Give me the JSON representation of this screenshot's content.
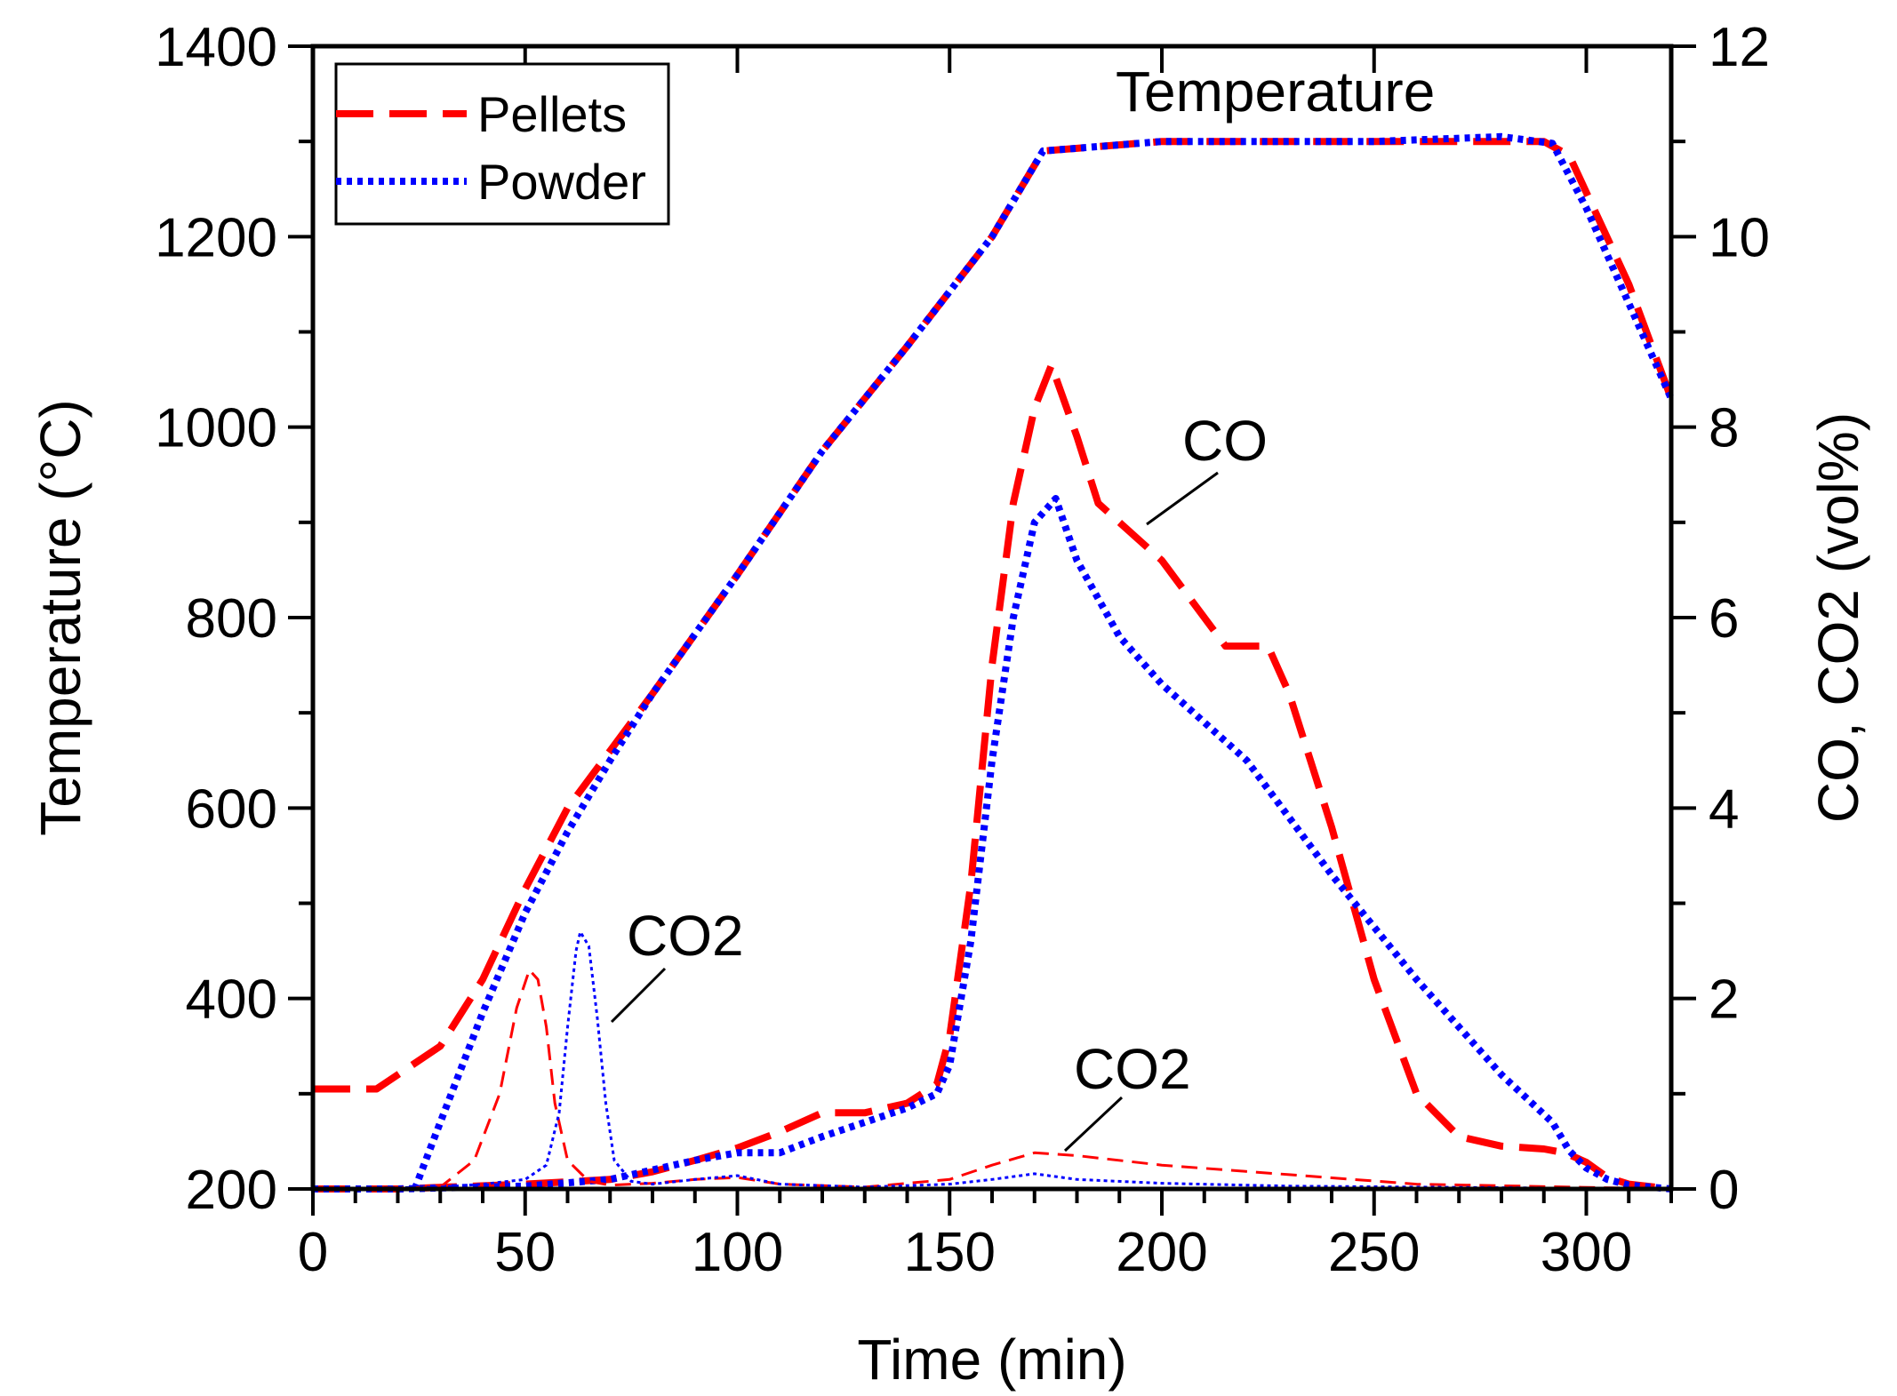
{
  "chart_data": {
    "type": "line",
    "xlabel": "Time (min)",
    "ylabel_left": "Temperature (°C)",
    "ylabel_right": "CO, CO2 (vol%)",
    "xlim": [
      0,
      320
    ],
    "ylim_left": [
      200,
      1400
    ],
    "ylim_right": [
      0,
      12
    ],
    "x_ticks": [
      0,
      50,
      100,
      150,
      200,
      250,
      300
    ],
    "y_left_ticks": [
      200,
      400,
      600,
      800,
      1000,
      1200,
      1400
    ],
    "y_right_ticks": [
      0,
      2,
      4,
      6,
      8,
      10,
      12
    ],
    "legend": {
      "position": "top-left",
      "entries": [
        {
          "label": "Pellets",
          "color": "#ff0000",
          "style": "dashed"
        },
        {
          "label": "Powder",
          "color": "#0000ff",
          "style": "dotted"
        }
      ]
    },
    "annotations": [
      {
        "text": "Temperature",
        "x": 235,
        "y_left": 1310
      },
      {
        "text": "CO",
        "x": 218,
        "y_left": 980
      },
      {
        "text": "CO2",
        "x": 85,
        "y_left": 450
      },
      {
        "text": "CO2",
        "x": 195,
        "y_left": 285
      }
    ],
    "series": [
      {
        "name": "Pellets",
        "kind": "temperature",
        "axis": "left",
        "color": "#ff0000",
        "style": "dashed",
        "x": [
          0,
          15,
          30,
          40,
          50,
          60,
          70,
          80,
          100,
          120,
          140,
          160,
          172,
          200,
          250,
          290,
          296,
          310,
          320
        ],
        "y": [
          305,
          305,
          350,
          420,
          515,
          600,
          660,
          720,
          845,
          975,
          1085,
          1200,
          1290,
          1300,
          1300,
          1300,
          1285,
          1150,
          1030
        ]
      },
      {
        "name": "Powder",
        "kind": "temperature",
        "axis": "left",
        "color": "#0000ff",
        "style": "dotted",
        "x": [
          24,
          30,
          40,
          50,
          60,
          70,
          80,
          100,
          120,
          140,
          160,
          172,
          200,
          250,
          280,
          292,
          300,
          310,
          320
        ],
        "y": [
          200,
          270,
          385,
          490,
          575,
          650,
          720,
          845,
          975,
          1085,
          1200,
          1290,
          1300,
          1300,
          1305,
          1298,
          1230,
          1130,
          1030
        ]
      },
      {
        "name": "Pellets",
        "kind": "CO",
        "axis": "right",
        "color": "#ff0000",
        "style": "dashed",
        "x": [
          0,
          20,
          50,
          70,
          80,
          90,
          100,
          110,
          120,
          130,
          140,
          147,
          150,
          155,
          160,
          165,
          170,
          174,
          180,
          185,
          200,
          215,
          220,
          225,
          230,
          240,
          250,
          260,
          270,
          280,
          290,
          295,
          300,
          305,
          310,
          320
        ],
        "y": [
          0,
          0,
          0.05,
          0.1,
          0.18,
          0.3,
          0.43,
          0.6,
          0.8,
          0.8,
          0.9,
          1.1,
          1.6,
          3.2,
          5.5,
          7.2,
          8.2,
          8.65,
          7.9,
          7.2,
          6.6,
          5.7,
          5.7,
          5.7,
          5.2,
          3.8,
          2.2,
          1.0,
          0.55,
          0.45,
          0.42,
          0.38,
          0.28,
          0.12,
          0.05,
          0
        ]
      },
      {
        "name": "Powder",
        "kind": "CO",
        "axis": "right",
        "color": "#0000ff",
        "style": "dotted",
        "x": [
          0,
          20,
          50,
          70,
          80,
          90,
          100,
          110,
          120,
          130,
          140,
          147,
          150,
          155,
          160,
          165,
          170,
          175,
          180,
          190,
          200,
          220,
          240,
          260,
          280,
          292,
          296,
          300,
          305,
          310,
          320
        ],
        "y": [
          0,
          0,
          0.03,
          0.1,
          0.2,
          0.3,
          0.38,
          0.38,
          0.55,
          0.7,
          0.85,
          1.0,
          1.3,
          2.6,
          4.5,
          6.0,
          7.0,
          7.25,
          6.6,
          5.8,
          5.3,
          4.5,
          3.3,
          2.2,
          1.2,
          0.7,
          0.4,
          0.22,
          0.1,
          0.04,
          0
        ]
      },
      {
        "name": "Pellets",
        "kind": "CO2",
        "axis": "right",
        "color": "#ff0000",
        "style": "dashed-thin",
        "x": [
          0,
          30,
          38,
          44,
          48,
          51,
          53,
          55,
          57,
          60,
          65,
          70,
          80,
          90,
          100,
          110,
          130,
          150,
          160,
          170,
          180,
          200,
          230,
          260,
          320
        ],
        "y": [
          0,
          0.02,
          0.3,
          1.0,
          1.9,
          2.3,
          2.2,
          1.7,
          0.9,
          0.3,
          0.08,
          0.04,
          0.06,
          0.1,
          0.12,
          0.05,
          0.02,
          0.1,
          0.25,
          0.38,
          0.35,
          0.25,
          0.15,
          0.05,
          0
        ]
      },
      {
        "name": "Powder",
        "kind": "CO2",
        "axis": "right",
        "color": "#0000ff",
        "style": "dotted-thin",
        "x": [
          0,
          30,
          40,
          50,
          55,
          58,
          60,
          62,
          63,
          65,
          67,
          69,
          71,
          75,
          80,
          90,
          100,
          110,
          130,
          150,
          160,
          170,
          180,
          200,
          230,
          320
        ],
        "y": [
          0,
          0.02,
          0.05,
          0.1,
          0.25,
          0.8,
          1.7,
          2.5,
          2.7,
          2.55,
          1.8,
          0.9,
          0.3,
          0.08,
          0.05,
          0.1,
          0.14,
          0.05,
          0.02,
          0.05,
          0.1,
          0.16,
          0.1,
          0.06,
          0.03,
          0
        ]
      }
    ]
  }
}
